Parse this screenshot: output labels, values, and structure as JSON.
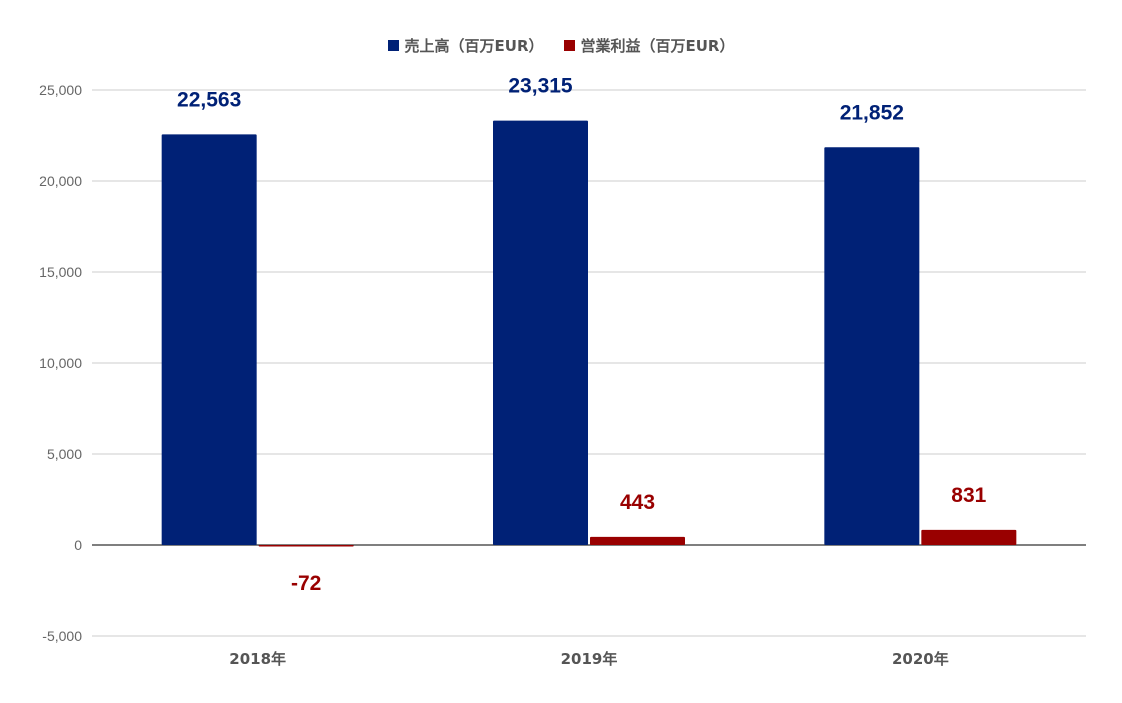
{
  "chart_data": {
    "type": "bar",
    "categories": [
      "2018年",
      "2019年",
      "2020年"
    ],
    "series": [
      {
        "name": "売上高（百万EUR）",
        "values": [
          22563,
          23315,
          21852
        ],
        "labels": [
          "22,563",
          "23,315",
          "21,852"
        ],
        "color": "#002176"
      },
      {
        "name": "営業利益（百万EUR）",
        "values": [
          -72,
          443,
          831
        ],
        "labels": [
          "-72",
          "443",
          "831"
        ],
        "color": "#990000"
      }
    ],
    "ylim": [
      -5000,
      25000
    ],
    "yticks": [
      -5000,
      0,
      5000,
      10000,
      15000,
      20000,
      25000
    ],
    "ytick_labels": [
      "-5,000",
      "0",
      "5,000",
      "10,000",
      "15,000",
      "20,000",
      "25,000"
    ],
    "grid": true,
    "legend": "top-center"
  }
}
